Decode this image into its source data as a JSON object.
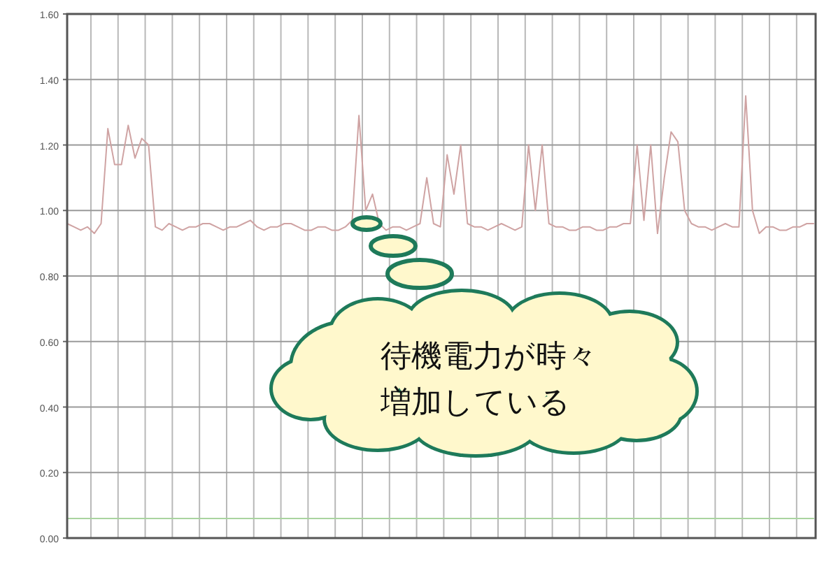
{
  "chart_data": {
    "type": "line",
    "categories": [
      null,
      null,
      null,
      null,
      null,
      null,
      null,
      null,
      null,
      null,
      null,
      null,
      null,
      null,
      null,
      null,
      null,
      null,
      null,
      null,
      null,
      null,
      null,
      null,
      null,
      null,
      null,
      null,
      null,
      null,
      null,
      null,
      null,
      null,
      null,
      null,
      null,
      null,
      null,
      null,
      null,
      null,
      null,
      null,
      null,
      null,
      null,
      null,
      null,
      null,
      null,
      null,
      null,
      null,
      null,
      null,
      null,
      null,
      null,
      null,
      null,
      null,
      null,
      null,
      null,
      null,
      null,
      null,
      null,
      null,
      null,
      null,
      null,
      null,
      null,
      null,
      null,
      null,
      null,
      null,
      null,
      null,
      null,
      null,
      null,
      null,
      null,
      null,
      null,
      null,
      null,
      null,
      null,
      null,
      null,
      null,
      null,
      null,
      null,
      null,
      null,
      null,
      null,
      null,
      null,
      null,
      null,
      null,
      null,
      null,
      null
    ],
    "ylim": [
      0,
      1.6
    ],
    "yticks": [
      {
        "value": 0,
        "label": "0.00"
      },
      {
        "value": 0.2,
        "label": "0.20"
      },
      {
        "value": 0.4,
        "label": "0.40"
      },
      {
        "value": 0.6,
        "label": "0.60"
      },
      {
        "value": 0.8,
        "label": "0.80"
      },
      {
        "value": 1.0,
        "label": "1.00"
      },
      {
        "value": 1.2,
        "label": "1.20"
      },
      {
        "value": 1.4,
        "label": "1.40"
      },
      {
        "value": 1.6,
        "label": "1.60"
      }
    ],
    "grid": true,
    "series": [
      {
        "color": "#cfa3a3",
        "values": [
          0.96,
          0.95,
          0.94,
          0.95,
          0.93,
          0.96,
          1.25,
          1.14,
          1.14,
          1.26,
          1.16,
          1.22,
          1.2,
          0.95,
          0.94,
          0.96,
          0.95,
          0.94,
          0.95,
          0.95,
          0.96,
          0.96,
          0.95,
          0.94,
          0.95,
          0.95,
          0.96,
          0.97,
          0.95,
          0.94,
          0.95,
          0.95,
          0.96,
          0.96,
          0.95,
          0.94,
          0.94,
          0.95,
          0.95,
          0.94,
          0.94,
          0.95,
          0.97,
          1.29,
          1.0,
          1.05,
          0.96,
          0.94,
          0.95,
          0.95,
          0.94,
          0.95,
          0.96,
          1.1,
          0.96,
          0.95,
          1.17,
          1.05,
          1.2,
          0.96,
          0.95,
          0.95,
          0.94,
          0.95,
          0.96,
          0.95,
          0.94,
          0.95,
          1.2,
          1.0,
          1.2,
          0.96,
          0.95,
          0.95,
          0.94,
          0.94,
          0.95,
          0.95,
          0.94,
          0.94,
          0.95,
          0.95,
          0.96,
          0.96,
          1.2,
          0.97,
          1.2,
          0.93,
          1.1,
          1.24,
          1.21,
          1.0,
          0.96,
          0.95,
          0.95,
          0.94,
          0.95,
          0.96,
          0.95,
          0.95,
          1.35,
          1.0,
          0.93,
          0.95,
          0.95,
          0.94,
          0.94,
          0.95,
          0.95,
          0.96,
          0.96
        ]
      },
      {
        "color": "#a9d49f",
        "values": [
          0.06,
          0.06,
          0.06,
          0.06,
          0.06,
          0.06,
          0.06,
          0.06,
          0.06,
          0.06,
          0.06,
          0.06,
          0.06,
          0.06,
          0.06,
          0.06,
          0.06,
          0.06,
          0.06,
          0.06,
          0.06,
          0.06,
          0.06,
          0.06,
          0.06,
          0.06,
          0.06,
          0.06,
          0.06,
          0.06,
          0.06,
          0.06,
          0.06,
          0.06,
          0.06,
          0.06,
          0.06,
          0.06,
          0.06,
          0.06,
          0.06,
          0.06,
          0.06,
          0.06,
          0.06,
          0.06,
          0.06,
          0.06,
          0.06,
          0.06,
          0.06,
          0.06,
          0.06,
          0.06,
          0.06,
          0.06,
          0.06,
          0.06,
          0.06,
          0.06,
          0.06,
          0.06,
          0.06,
          0.06,
          0.06,
          0.06,
          0.06,
          0.06,
          0.06,
          0.06,
          0.06,
          0.06,
          0.06,
          0.06,
          0.06,
          0.06,
          0.06,
          0.06,
          0.06,
          0.06,
          0.06,
          0.06,
          0.06,
          0.06,
          0.06,
          0.06,
          0.06,
          0.06,
          0.06,
          0.06,
          0.06,
          0.06,
          0.06,
          0.06,
          0.06,
          0.06,
          0.06,
          0.06,
          0.06,
          0.06,
          0.06,
          0.06,
          0.06,
          0.06,
          0.06,
          0.06,
          0.06,
          0.06,
          0.06,
          0.06,
          0.06
        ]
      }
    ],
    "annotations": [
      "待機電力が時々",
      "増加している"
    ]
  }
}
